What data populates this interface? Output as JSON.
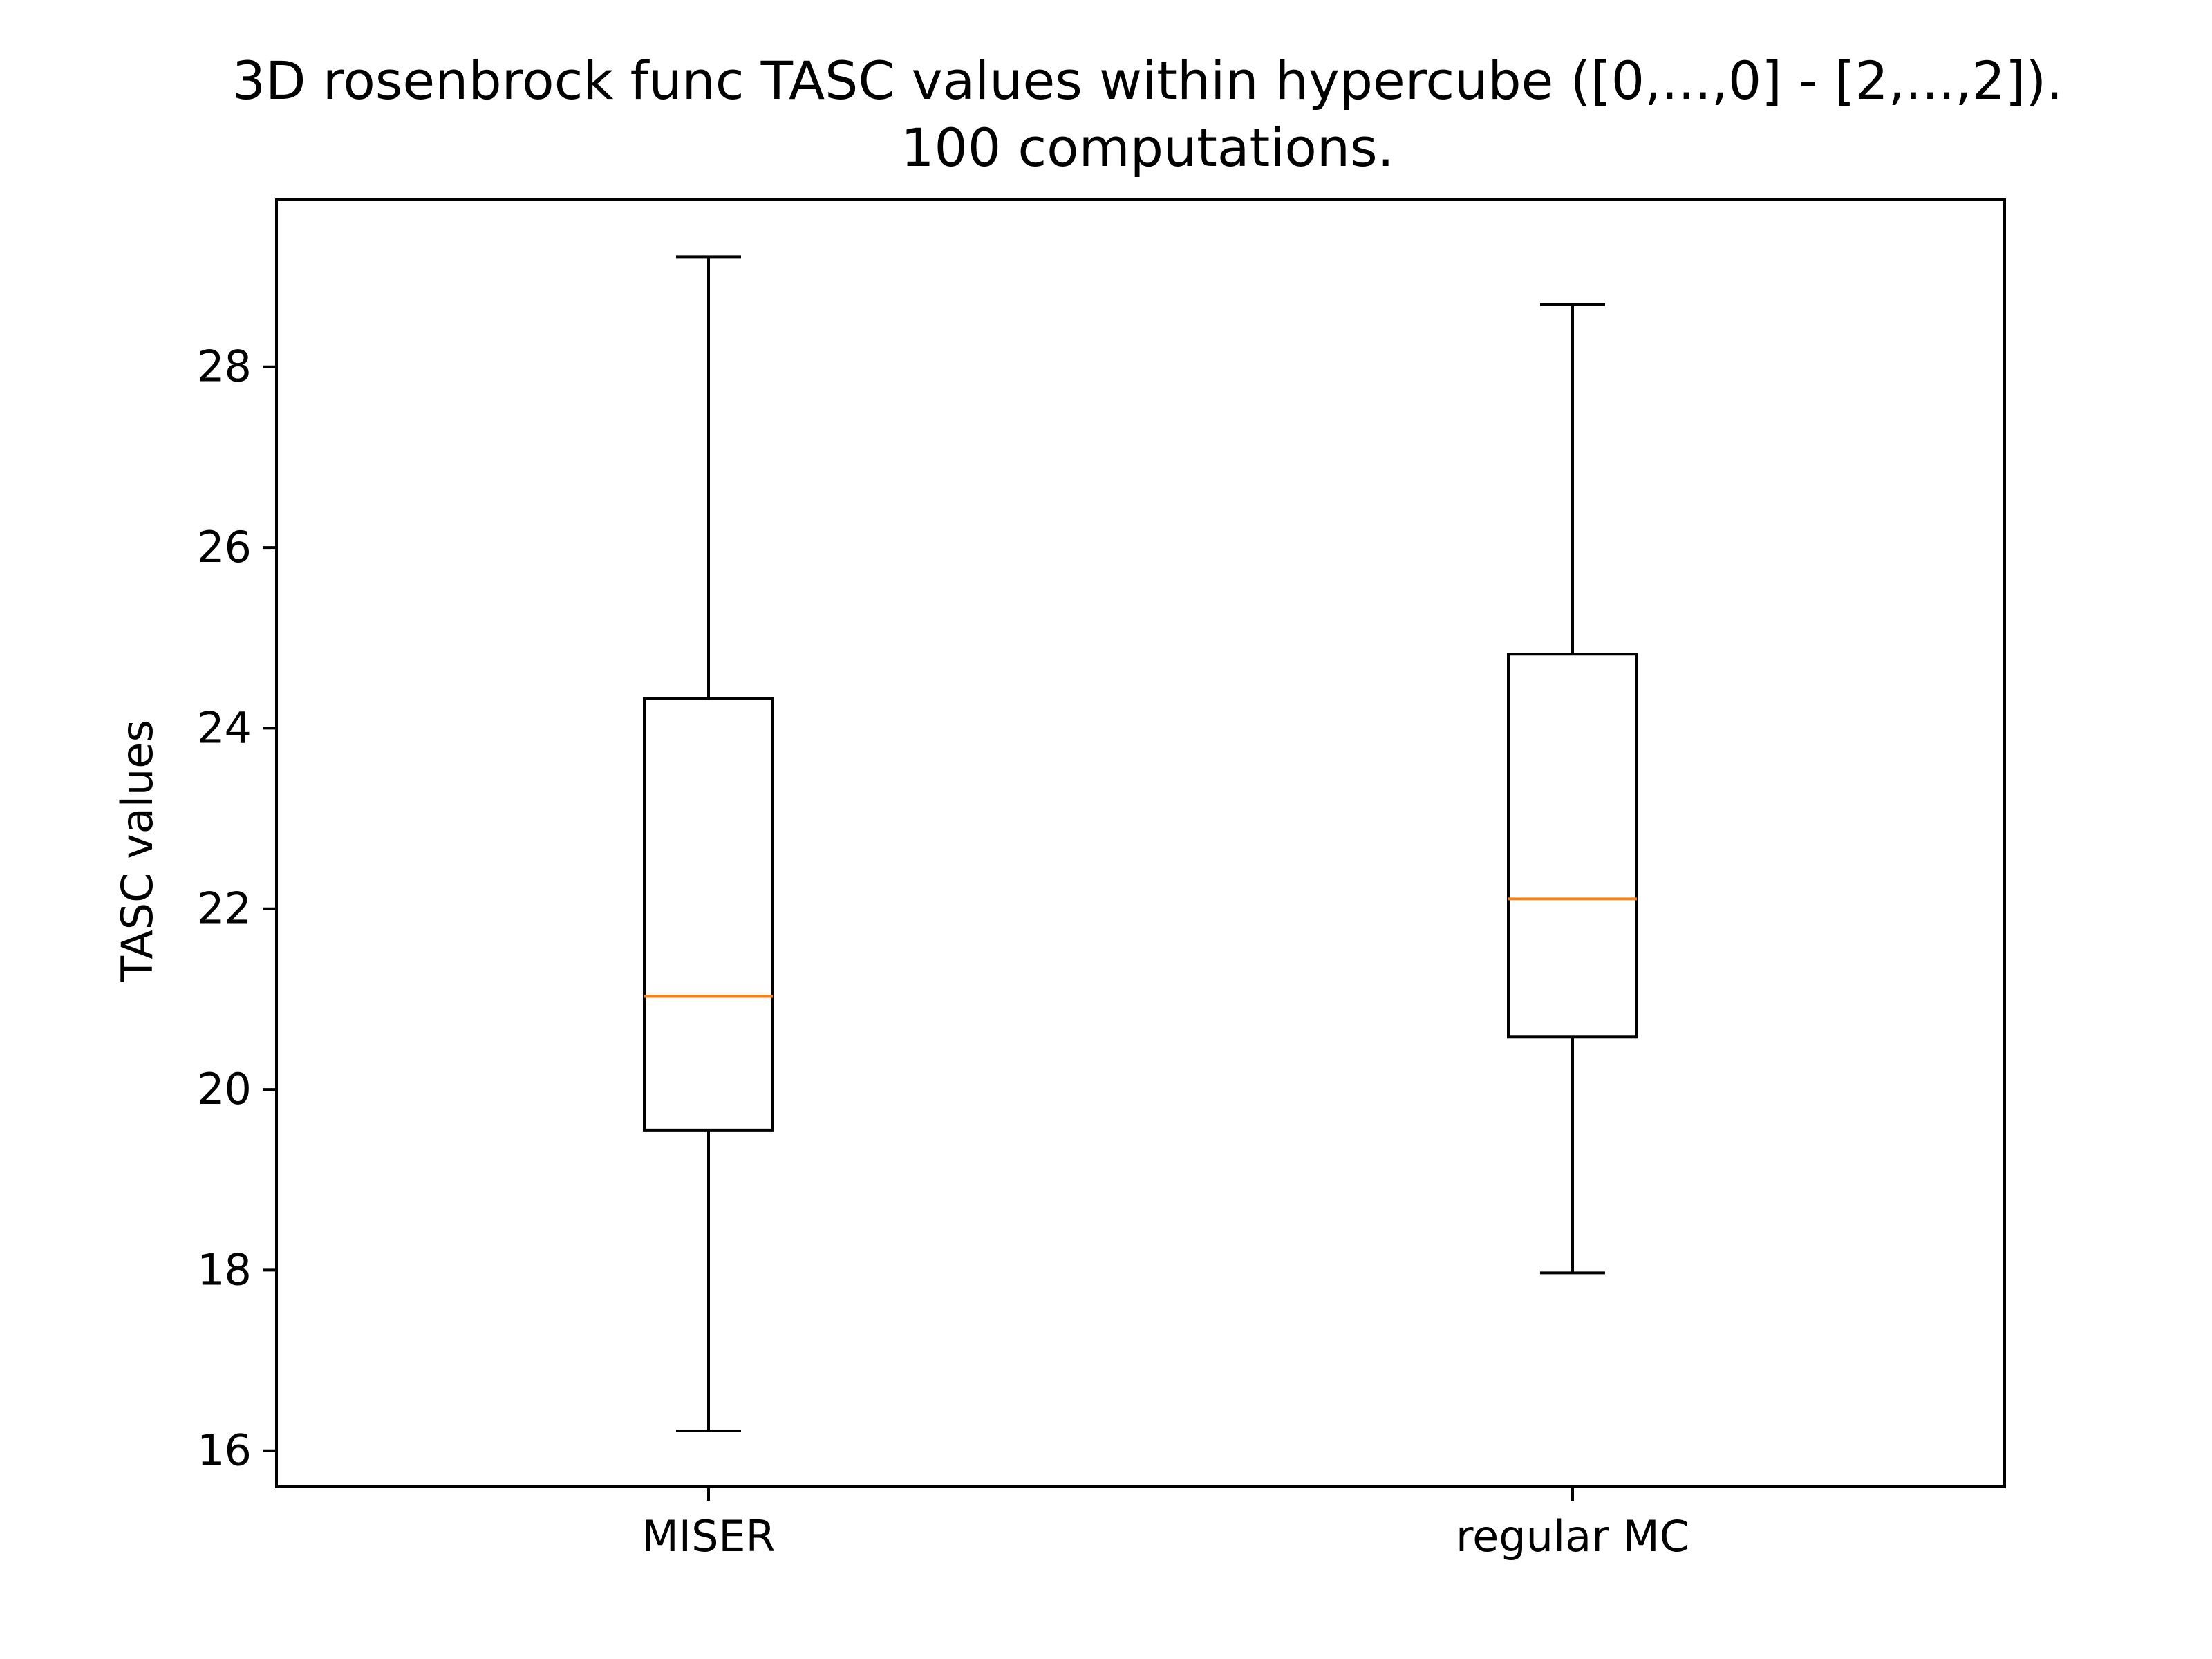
{
  "chart_data": {
    "type": "box",
    "title": "3D rosenbrock func TASC values within hypercube ([0,...,0] - [2,...,2]).",
    "subtitle": "100 computations.",
    "xlabel": "",
    "ylabel": "TASC values",
    "categories": [
      "MISER",
      "regular MC"
    ],
    "ylim": [
      15.6,
      29.85
    ],
    "yticks": [
      16,
      18,
      20,
      22,
      24,
      26,
      28
    ],
    "grid": false,
    "boxes": [
      {
        "category": "MISER",
        "whisker_low": 16.22,
        "q1": 19.55,
        "median": 21.03,
        "q3": 24.33,
        "whisker_high": 29.22
      },
      {
        "category": "regular MC",
        "whisker_low": 17.97,
        "q1": 20.58,
        "median": 22.11,
        "q3": 24.82,
        "whisker_high": 28.69
      }
    ],
    "colors": {
      "box": "#000000",
      "median": "#ff7f0e",
      "axes": "#000000"
    }
  }
}
